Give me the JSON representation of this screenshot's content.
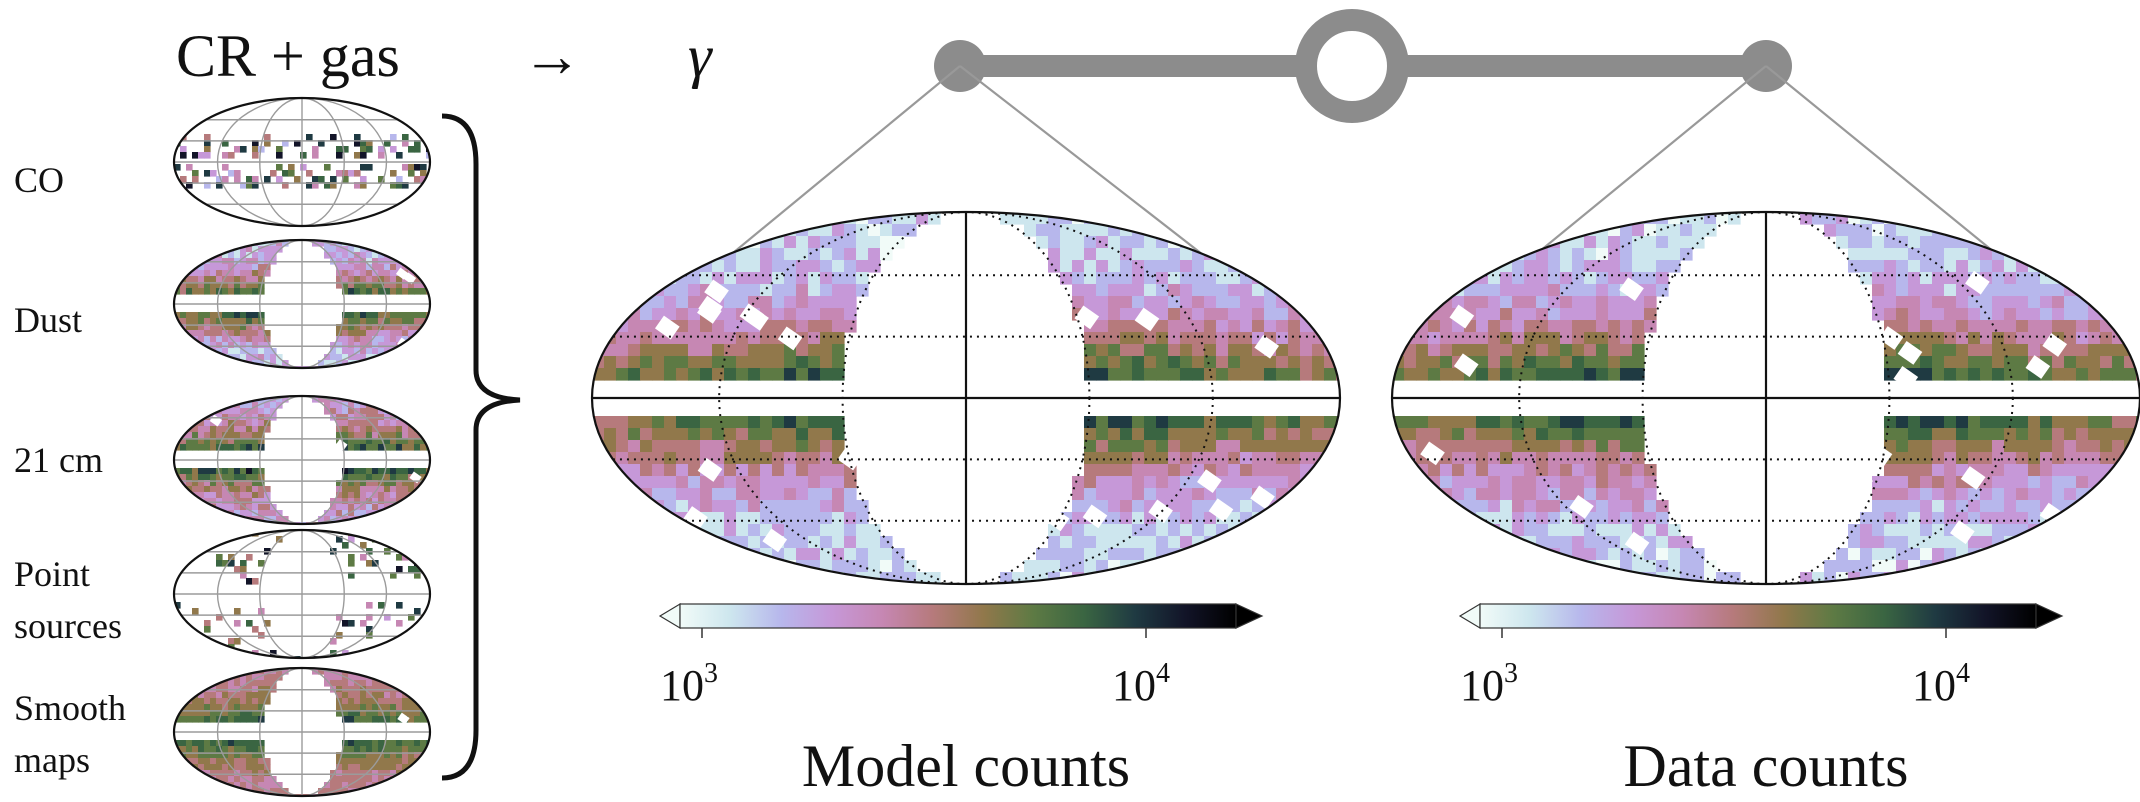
{
  "header": {
    "equation_left": "CR + gas",
    "arrow": "→",
    "gamma": "γ"
  },
  "templates": [
    {
      "id": "co",
      "lines": [
        "CO"
      ]
    },
    {
      "id": "dust",
      "lines": [
        "Dust"
      ]
    },
    {
      "id": "hi",
      "lines": [
        "21 cm"
      ]
    },
    {
      "id": "ps",
      "lines": [
        "Point",
        "sources"
      ]
    },
    {
      "id": "smooth",
      "lines": [
        "Smooth",
        "maps"
      ]
    }
  ],
  "panels": {
    "model": {
      "title": "Model counts",
      "cbar_min": "3",
      "cbar_max": "4",
      "cbar_base": "10"
    },
    "data": {
      "title": "Data counts",
      "cbar_min": "3",
      "cbar_max": "4",
      "cbar_base": "10"
    }
  },
  "colormap": {
    "stops": [
      "#f1fbf8",
      "#cde6ee",
      "#b7b7ec",
      "#c698d8",
      "#c687b3",
      "#b67a7c",
      "#91784b",
      "#5d7a44",
      "#3a6542",
      "#1f3a42",
      "#121428",
      "#000000"
    ]
  },
  "colors": {
    "balance": "#8c8c8c",
    "connector": "#999999",
    "mask": "#ffffff"
  }
}
